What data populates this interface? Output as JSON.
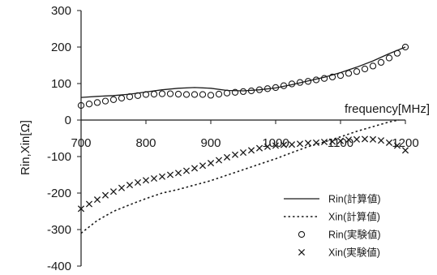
{
  "chart_data": {
    "type": "line",
    "xlabel": "frequency[MHz]",
    "ylabel": "Rin,Xin[Ω]",
    "xlim": [
      700,
      1200
    ],
    "ylim": [
      -400,
      300
    ],
    "xticks": [
      700,
      800,
      900,
      1000,
      1100,
      1200
    ],
    "xtick_labels": [
      "700",
      "800",
      "900",
      "1000",
      "1100",
      "1200"
    ],
    "yticks": [
      -400,
      -300,
      -200,
      -100,
      0,
      100,
      200,
      300
    ],
    "ytick_labels": [
      "-400",
      "-300",
      "-200",
      "-100",
      "0",
      "100",
      "200",
      "300"
    ],
    "grid": false,
    "legend_position": "bottom-right",
    "series": [
      {
        "name": "Rin(計算値)",
        "style": "solid-line",
        "color": "#1a1a1a",
        "x": [
          700,
          725,
          750,
          775,
          800,
          825,
          850,
          875,
          900,
          925,
          950,
          975,
          1000,
          1025,
          1050,
          1075,
          1100,
          1125,
          1150,
          1175,
          1200
        ],
        "y": [
          62,
          65,
          67,
          71,
          77,
          83,
          87,
          89,
          87,
          81,
          80,
          83,
          88,
          97,
          107,
          117,
          130,
          145,
          162,
          182,
          200
        ]
      },
      {
        "name": "Xin(計算値)",
        "style": "dotted-line",
        "color": "#1a1a1a",
        "x": [
          700,
          725,
          750,
          775,
          800,
          825,
          850,
          875,
          900,
          925,
          950,
          975,
          1000,
          1025,
          1050,
          1075,
          1100,
          1125,
          1150,
          1175,
          1190
        ],
        "y": [
          -310,
          -275,
          -250,
          -232,
          -215,
          -200,
          -190,
          -178,
          -166,
          -151,
          -136,
          -121,
          -106,
          -89,
          -73,
          -60,
          -46,
          -31,
          -18,
          -5,
          0
        ]
      },
      {
        "name": "Rin(実験値)",
        "style": "open-circle",
        "color": "#1a1a1a",
        "x": [
          700,
          712.5,
          725,
          737.5,
          750,
          762.5,
          775,
          787.5,
          800,
          812.5,
          825,
          837.5,
          850,
          862.5,
          875,
          887.5,
          900,
          912.5,
          925,
          937.5,
          950,
          962.5,
          975,
          987.5,
          1000,
          1012.5,
          1025,
          1037.5,
          1050,
          1062.5,
          1075,
          1087.5,
          1100,
          1112.5,
          1125,
          1137.5,
          1150,
          1162.5,
          1175,
          1187.5,
          1200
        ],
        "y": [
          40,
          44,
          48,
          52,
          56,
          60,
          64,
          67,
          70,
          71,
          72,
          72,
          71,
          70,
          70,
          70,
          68,
          71,
          74,
          76,
          78,
          80,
          83,
          86,
          89,
          94,
          99,
          103,
          106,
          110,
          114,
          118,
          122,
          128,
          133,
          140,
          148,
          158,
          170,
          183,
          200
        ]
      },
      {
        "name": "Xin(実験値)",
        "style": "cross",
        "color": "#1a1a1a",
        "x": [
          700,
          712.5,
          725,
          737.5,
          750,
          762.5,
          775,
          787.5,
          800,
          812.5,
          825,
          837.5,
          850,
          862.5,
          875,
          887.5,
          900,
          912.5,
          925,
          937.5,
          950,
          962.5,
          975,
          987.5,
          1000,
          1012.5,
          1025,
          1037.5,
          1050,
          1062.5,
          1075,
          1087.5,
          1100,
          1112.5,
          1125,
          1137.5,
          1150,
          1162.5,
          1175,
          1187.5,
          1200
        ],
        "y": [
          -243,
          -230,
          -218,
          -206,
          -196,
          -186,
          -178,
          -171,
          -165,
          -160,
          -155,
          -150,
          -145,
          -139,
          -132,
          -125,
          -118,
          -110,
          -102,
          -95,
          -89,
          -83,
          -77,
          -73,
          -70,
          -68,
          -67,
          -65,
          -63,
          -62,
          -60,
          -59,
          -57,
          -54,
          -53,
          -52,
          -53,
          -56,
          -62,
          -70,
          -83
        ]
      }
    ]
  }
}
